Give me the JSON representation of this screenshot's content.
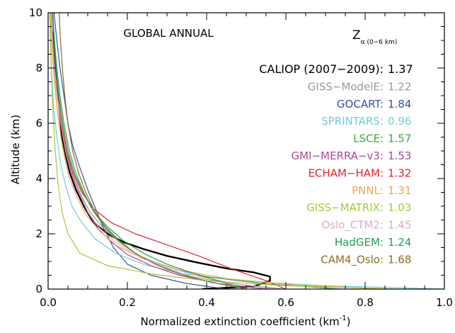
{
  "chart_data": {
    "type": "line",
    "title": "GLOBAL ANNUAL",
    "xlabel": "Normalized extinction coefficient (km",
    "xlabel_sup": "-1",
    "xlabel_end": ")",
    "ylabel": "Altitude (km)",
    "xlim": [
      0.0,
      1.0
    ],
    "ylim": [
      0,
      10
    ],
    "grid": false,
    "x_ticks": [
      0.0,
      0.2,
      0.4,
      0.6,
      0.8,
      1.0
    ],
    "x_tick_labels": [
      "0.0",
      "0.2",
      "0.4",
      "0.6",
      "0.8",
      "1.0"
    ],
    "y_ticks": [
      0,
      2,
      4,
      6,
      8,
      10
    ],
    "y_tick_labels": [
      "0",
      "2",
      "4",
      "6",
      "8",
      "10"
    ],
    "legend_header": {
      "symbol": "Z",
      "subscript": "α (0−6 km)"
    },
    "legend_placement": "right",
    "series": [
      {
        "name": "CALIOP (2007−2009)",
        "z_label": "1.37",
        "color": "#000000",
        "stroke_width": 2.4,
        "points": [
          [
            0.39,
            0.0
          ],
          [
            0.52,
            0.1
          ],
          [
            0.56,
            0.3
          ],
          [
            0.56,
            0.45
          ],
          [
            0.52,
            0.6
          ],
          [
            0.45,
            0.75
          ],
          [
            0.38,
            0.95
          ],
          [
            0.3,
            1.2
          ],
          [
            0.24,
            1.45
          ],
          [
            0.19,
            1.7
          ],
          [
            0.15,
            2.0
          ],
          [
            0.115,
            2.4
          ],
          [
            0.09,
            3.0
          ],
          [
            0.07,
            3.6
          ],
          [
            0.055,
            4.2
          ],
          [
            0.045,
            4.8
          ],
          [
            0.035,
            5.5
          ],
          [
            0.028,
            6.5
          ],
          [
            0.02,
            7.5
          ],
          [
            0.015,
            8.5
          ],
          [
            0.012,
            9.3
          ]
        ]
      },
      {
        "name": "GISS−ModelE",
        "z_label": "1.22",
        "color": "#999999",
        "stroke_width": 1.2,
        "points": [
          [
            0.6,
            0.0
          ],
          [
            0.46,
            0.2
          ],
          [
            0.36,
            0.45
          ],
          [
            0.29,
            0.8
          ],
          [
            0.23,
            1.2
          ],
          [
            0.18,
            1.7
          ],
          [
            0.14,
            2.2
          ],
          [
            0.105,
            2.8
          ],
          [
            0.08,
            3.5
          ],
          [
            0.06,
            4.2
          ],
          [
            0.045,
            5.0
          ],
          [
            0.033,
            6.0
          ],
          [
            0.022,
            7.0
          ],
          [
            0.015,
            8.0
          ],
          [
            0.01,
            9.0
          ],
          [
            0.008,
            10.0
          ]
        ]
      },
      {
        "name": "GOCART",
        "z_label": "1.84",
        "color": "#3a4fa0",
        "stroke_width": 1.2,
        "points": [
          [
            0.45,
            0.0
          ],
          [
            0.35,
            0.2
          ],
          [
            0.26,
            0.5
          ],
          [
            0.2,
            0.9
          ],
          [
            0.165,
            1.5
          ],
          [
            0.14,
            2.2
          ],
          [
            0.12,
            2.9
          ],
          [
            0.1,
            3.6
          ],
          [
            0.08,
            4.4
          ],
          [
            0.062,
            5.2
          ],
          [
            0.05,
            6.0
          ],
          [
            0.04,
            7.0
          ],
          [
            0.03,
            8.0
          ],
          [
            0.022,
            9.0
          ],
          [
            0.015,
            10.0
          ]
        ]
      },
      {
        "name": "SPRINTARS",
        "z_label": "0.96",
        "color": "#6ccfd8",
        "stroke_width": 1.2,
        "points": [
          [
            1.0,
            0.0
          ],
          [
            0.7,
            0.12
          ],
          [
            0.48,
            0.3
          ],
          [
            0.34,
            0.55
          ],
          [
            0.24,
            0.9
          ],
          [
            0.17,
            1.3
          ],
          [
            0.12,
            1.8
          ],
          [
            0.085,
            2.4
          ],
          [
            0.06,
            3.0
          ],
          [
            0.045,
            3.7
          ],
          [
            0.032,
            4.5
          ],
          [
            0.022,
            5.5
          ],
          [
            0.014,
            6.6
          ],
          [
            0.008,
            8.0
          ],
          [
            0.005,
            10.0
          ]
        ]
      },
      {
        "name": "LSCE",
        "z_label": "1.57",
        "color": "#3aa845",
        "stroke_width": 1.2,
        "points": [
          [
            0.74,
            0.0
          ],
          [
            0.54,
            0.2
          ],
          [
            0.4,
            0.45
          ],
          [
            0.3,
            0.8
          ],
          [
            0.23,
            1.2
          ],
          [
            0.18,
            1.7
          ],
          [
            0.145,
            2.2
          ],
          [
            0.115,
            2.8
          ],
          [
            0.09,
            3.5
          ],
          [
            0.07,
            4.2
          ],
          [
            0.054,
            5.0
          ],
          [
            0.04,
            6.0
          ],
          [
            0.03,
            7.0
          ],
          [
            0.022,
            8.0
          ],
          [
            0.016,
            9.0
          ],
          [
            0.012,
            10.0
          ]
        ]
      },
      {
        "name": "GMI−MERRA−v3",
        "z_label": "1.53",
        "color": "#b0479a",
        "stroke_width": 1.2,
        "points": [
          [
            0.55,
            0.0
          ],
          [
            0.43,
            0.2
          ],
          [
            0.33,
            0.5
          ],
          [
            0.26,
            0.85
          ],
          [
            0.2,
            1.25
          ],
          [
            0.16,
            1.7
          ],
          [
            0.125,
            2.2
          ],
          [
            0.1,
            2.8
          ],
          [
            0.078,
            3.5
          ],
          [
            0.06,
            4.2
          ],
          [
            0.046,
            5.0
          ],
          [
            0.034,
            6.0
          ],
          [
            0.024,
            7.0
          ],
          [
            0.017,
            8.0
          ],
          [
            0.012,
            9.0
          ],
          [
            0.009,
            10.0
          ]
        ]
      },
      {
        "name": "ECHAM−HAM",
        "z_label": "1.32",
        "color": "#e0242c",
        "stroke_width": 1.2,
        "points": [
          [
            0.6,
            0.0
          ],
          [
            0.55,
            0.3
          ],
          [
            0.46,
            0.75
          ],
          [
            0.38,
            1.2
          ],
          [
            0.3,
            1.6
          ],
          [
            0.22,
            2.0
          ],
          [
            0.16,
            2.4
          ],
          [
            0.115,
            2.9
          ],
          [
            0.085,
            3.5
          ],
          [
            0.063,
            4.2
          ],
          [
            0.047,
            5.0
          ],
          [
            0.034,
            6.0
          ],
          [
            0.024,
            7.0
          ],
          [
            0.016,
            8.0
          ],
          [
            0.011,
            9.0
          ],
          [
            0.008,
            10.0
          ]
        ]
      },
      {
        "name": "PNNL",
        "z_label": "1.31",
        "color": "#f2a74a",
        "stroke_width": 1.2,
        "points": [
          [
            0.86,
            0.0
          ],
          [
            0.62,
            0.15
          ],
          [
            0.45,
            0.38
          ],
          [
            0.33,
            0.7
          ],
          [
            0.24,
            1.1
          ],
          [
            0.175,
            1.55
          ],
          [
            0.13,
            2.1
          ],
          [
            0.095,
            2.7
          ],
          [
            0.07,
            3.4
          ],
          [
            0.052,
            4.1
          ],
          [
            0.038,
            5.0
          ],
          [
            0.027,
            6.0
          ],
          [
            0.019,
            7.0
          ],
          [
            0.013,
            8.0
          ],
          [
            0.009,
            9.0
          ],
          [
            0.006,
            10.0
          ]
        ]
      },
      {
        "name": "GISS−MATRIX",
        "z_label": "1.03",
        "color": "#a7c93a",
        "stroke_width": 1.2,
        "points": [
          [
            0.88,
            0.0
          ],
          [
            0.6,
            0.12
          ],
          [
            0.4,
            0.3
          ],
          [
            0.26,
            0.55
          ],
          [
            0.15,
            0.85
          ],
          [
            0.08,
            1.3
          ],
          [
            0.05,
            2.0
          ],
          [
            0.035,
            2.8
          ],
          [
            0.025,
            3.8
          ],
          [
            0.018,
            5.0
          ],
          [
            0.013,
            6.2
          ],
          [
            0.009,
            7.5
          ],
          [
            0.006,
            8.8
          ],
          [
            0.004,
            10.0
          ]
        ]
      },
      {
        "name": "Oslo_CTM2",
        "z_label": "1.45",
        "color": "#e3a6c8",
        "stroke_width": 1.2,
        "points": [
          [
            0.57,
            0.0
          ],
          [
            0.47,
            0.2
          ],
          [
            0.37,
            0.5
          ],
          [
            0.29,
            0.85
          ],
          [
            0.22,
            1.25
          ],
          [
            0.17,
            1.7
          ],
          [
            0.13,
            2.2
          ],
          [
            0.1,
            2.8
          ],
          [
            0.077,
            3.5
          ],
          [
            0.058,
            4.2
          ],
          [
            0.044,
            5.0
          ],
          [
            0.032,
            6.0
          ],
          [
            0.023,
            7.0
          ],
          [
            0.016,
            8.0
          ],
          [
            0.011,
            9.0
          ],
          [
            0.008,
            10.0
          ]
        ]
      },
      {
        "name": "HadGEM",
        "z_label": "1.24",
        "color": "#1a9e54",
        "stroke_width": 1.2,
        "points": [
          [
            0.5,
            0.0
          ],
          [
            0.44,
            0.25
          ],
          [
            0.37,
            0.55
          ],
          [
            0.3,
            0.9
          ],
          [
            0.24,
            1.3
          ],
          [
            0.19,
            1.75
          ],
          [
            0.15,
            2.25
          ],
          [
            0.115,
            2.8
          ],
          [
            0.088,
            3.5
          ],
          [
            0.066,
            4.2
          ],
          [
            0.05,
            5.0
          ],
          [
            0.037,
            6.0
          ],
          [
            0.027,
            7.0
          ],
          [
            0.02,
            8.0
          ],
          [
            0.015,
            9.0
          ],
          [
            0.011,
            10.0
          ]
        ]
      },
      {
        "name": "CAM4_Oslo",
        "z_label": "1.68",
        "color": "#8f6a27",
        "stroke_width": 1.2,
        "points": [
          [
            0.5,
            0.0
          ],
          [
            0.41,
            0.25
          ],
          [
            0.33,
            0.55
          ],
          [
            0.27,
            0.9
          ],
          [
            0.22,
            1.3
          ],
          [
            0.18,
            1.75
          ],
          [
            0.145,
            2.25
          ],
          [
            0.118,
            2.8
          ],
          [
            0.095,
            3.5
          ],
          [
            0.077,
            4.2
          ],
          [
            0.062,
            5.0
          ],
          [
            0.05,
            6.0
          ],
          [
            0.042,
            7.0
          ],
          [
            0.036,
            8.0
          ],
          [
            0.031,
            9.0
          ],
          [
            0.028,
            10.0
          ]
        ]
      }
    ]
  }
}
